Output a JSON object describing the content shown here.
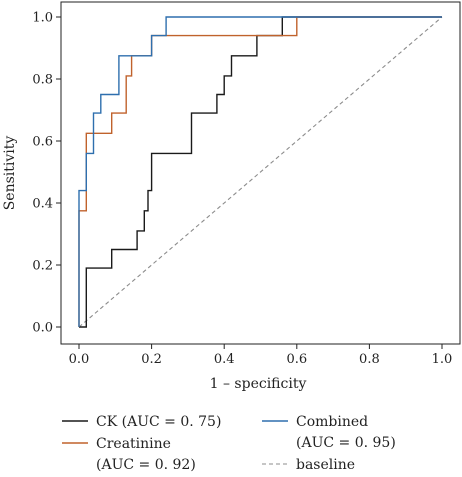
{
  "chart_data": {
    "type": "line",
    "title": "",
    "xlabel": "1 – specificity",
    "ylabel": "Sensitivity",
    "xlim": [
      -0.02,
      1.05
    ],
    "ylim": [
      -0.02,
      1.03
    ],
    "x_ticks": [
      "0.0",
      "0.2",
      "0.4",
      "0.6",
      "0.8",
      "1.0"
    ],
    "y_ticks": [
      "0.0",
      "0.2",
      "0.4",
      "0.6",
      "0.8",
      "1.0"
    ],
    "grid": false,
    "legend_position": "bottom",
    "series": [
      {
        "name": "CK (AUC = 0.75)",
        "color": "#1a1a1a",
        "style": "solid",
        "points": [
          [
            0,
            0
          ],
          [
            0.02,
            0
          ],
          [
            0.02,
            0.19
          ],
          [
            0.09,
            0.19
          ],
          [
            0.09,
            0.25
          ],
          [
            0.16,
            0.25
          ],
          [
            0.16,
            0.31
          ],
          [
            0.18,
            0.31
          ],
          [
            0.18,
            0.375
          ],
          [
            0.19,
            0.375
          ],
          [
            0.19,
            0.44
          ],
          [
            0.2,
            0.44
          ],
          [
            0.2,
            0.56
          ],
          [
            0.31,
            0.56
          ],
          [
            0.31,
            0.69
          ],
          [
            0.38,
            0.69
          ],
          [
            0.38,
            0.75
          ],
          [
            0.4,
            0.75
          ],
          [
            0.4,
            0.81
          ],
          [
            0.42,
            0.81
          ],
          [
            0.42,
            0.875
          ],
          [
            0.49,
            0.875
          ],
          [
            0.49,
            0.94
          ],
          [
            0.56,
            0.94
          ],
          [
            0.56,
            1.0
          ],
          [
            1.0,
            1.0
          ]
        ]
      },
      {
        "name": "Creatinine (AUC = 0.92)",
        "name_lines": [
          "Creatinine",
          "(AUC = 0. 92)"
        ],
        "color": "#c0622c",
        "style": "solid",
        "points": [
          [
            0,
            0
          ],
          [
            0,
            0.375
          ],
          [
            0.02,
            0.375
          ],
          [
            0.02,
            0.625
          ],
          [
            0.09,
            0.625
          ],
          [
            0.09,
            0.69
          ],
          [
            0.13,
            0.69
          ],
          [
            0.13,
            0.81
          ],
          [
            0.145,
            0.81
          ],
          [
            0.145,
            0.875
          ],
          [
            0.2,
            0.875
          ],
          [
            0.2,
            0.94
          ],
          [
            0.6,
            0.94
          ],
          [
            0.6,
            1.0
          ],
          [
            1.0,
            1.0
          ]
        ]
      },
      {
        "name": "Combined (AUC = 0.95)",
        "name_lines": [
          "Combined",
          "(AUC = 0. 95)"
        ],
        "color": "#2e6fae",
        "style": "solid",
        "points": [
          [
            0,
            0
          ],
          [
            0,
            0.44
          ],
          [
            0.02,
            0.44
          ],
          [
            0.02,
            0.56
          ],
          [
            0.04,
            0.56
          ],
          [
            0.04,
            0.69
          ],
          [
            0.06,
            0.69
          ],
          [
            0.06,
            0.75
          ],
          [
            0.11,
            0.75
          ],
          [
            0.11,
            0.875
          ],
          [
            0.2,
            0.875
          ],
          [
            0.2,
            0.94
          ],
          [
            0.24,
            0.94
          ],
          [
            0.24,
            1.0
          ],
          [
            1.0,
            1.0
          ]
        ]
      },
      {
        "name": "baseline",
        "color": "#8c8c8c",
        "style": "dashed",
        "points": [
          [
            0,
            0
          ],
          [
            1,
            1
          ]
        ]
      }
    ],
    "legend": [
      {
        "lines": [
          "CK (AUC = 0. 75)"
        ],
        "color": "#1a1a1a",
        "style": "solid"
      },
      {
        "lines": [
          "Creatinine",
          "(AUC = 0. 92)"
        ],
        "color": "#c0622c",
        "style": "solid"
      },
      {
        "lines": [
          "Combined",
          "(AUC = 0. 95)"
        ],
        "color": "#2e6fae",
        "style": "solid"
      },
      {
        "lines": [
          "baseline"
        ],
        "color": "#8c8c8c",
        "style": "dashed"
      }
    ]
  }
}
